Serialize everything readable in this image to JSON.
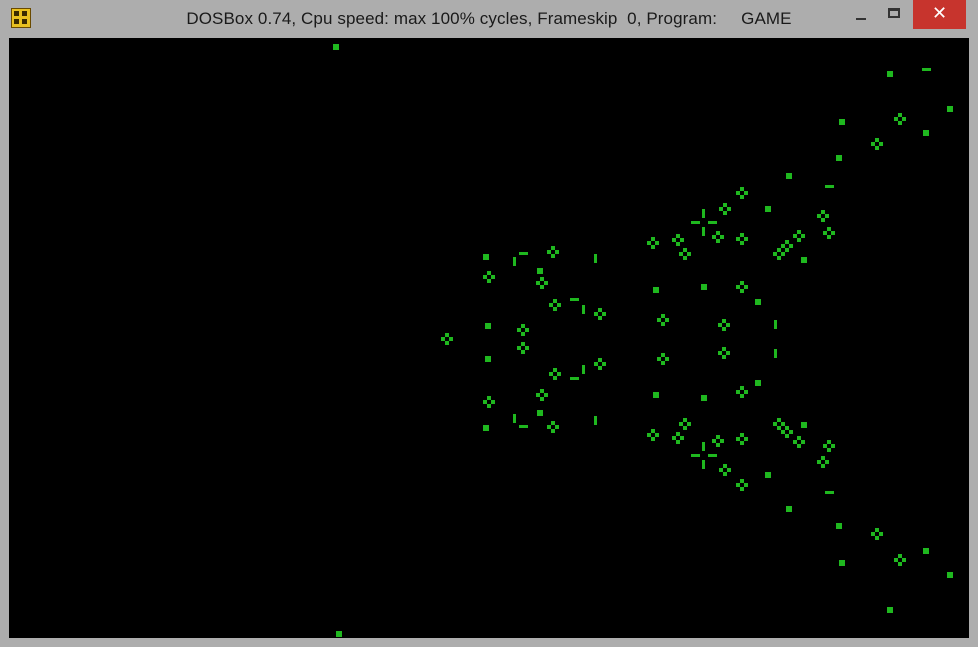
{
  "window": {
    "title": "DOSBox 0.74, Cpu speed: max 100% cycles, Frameskip  0, Program:     GAME",
    "minimize_icon": "minimize-icon",
    "maximize_icon": "maximize-icon",
    "close_icon": "close-icon",
    "close_glyph": "✕",
    "app_icon": "dosbox-icon"
  },
  "colors": {
    "cell": "#1fb81f",
    "screen": "#000000",
    "titlebar": "#adadad",
    "close": "#c7342d"
  }
}
